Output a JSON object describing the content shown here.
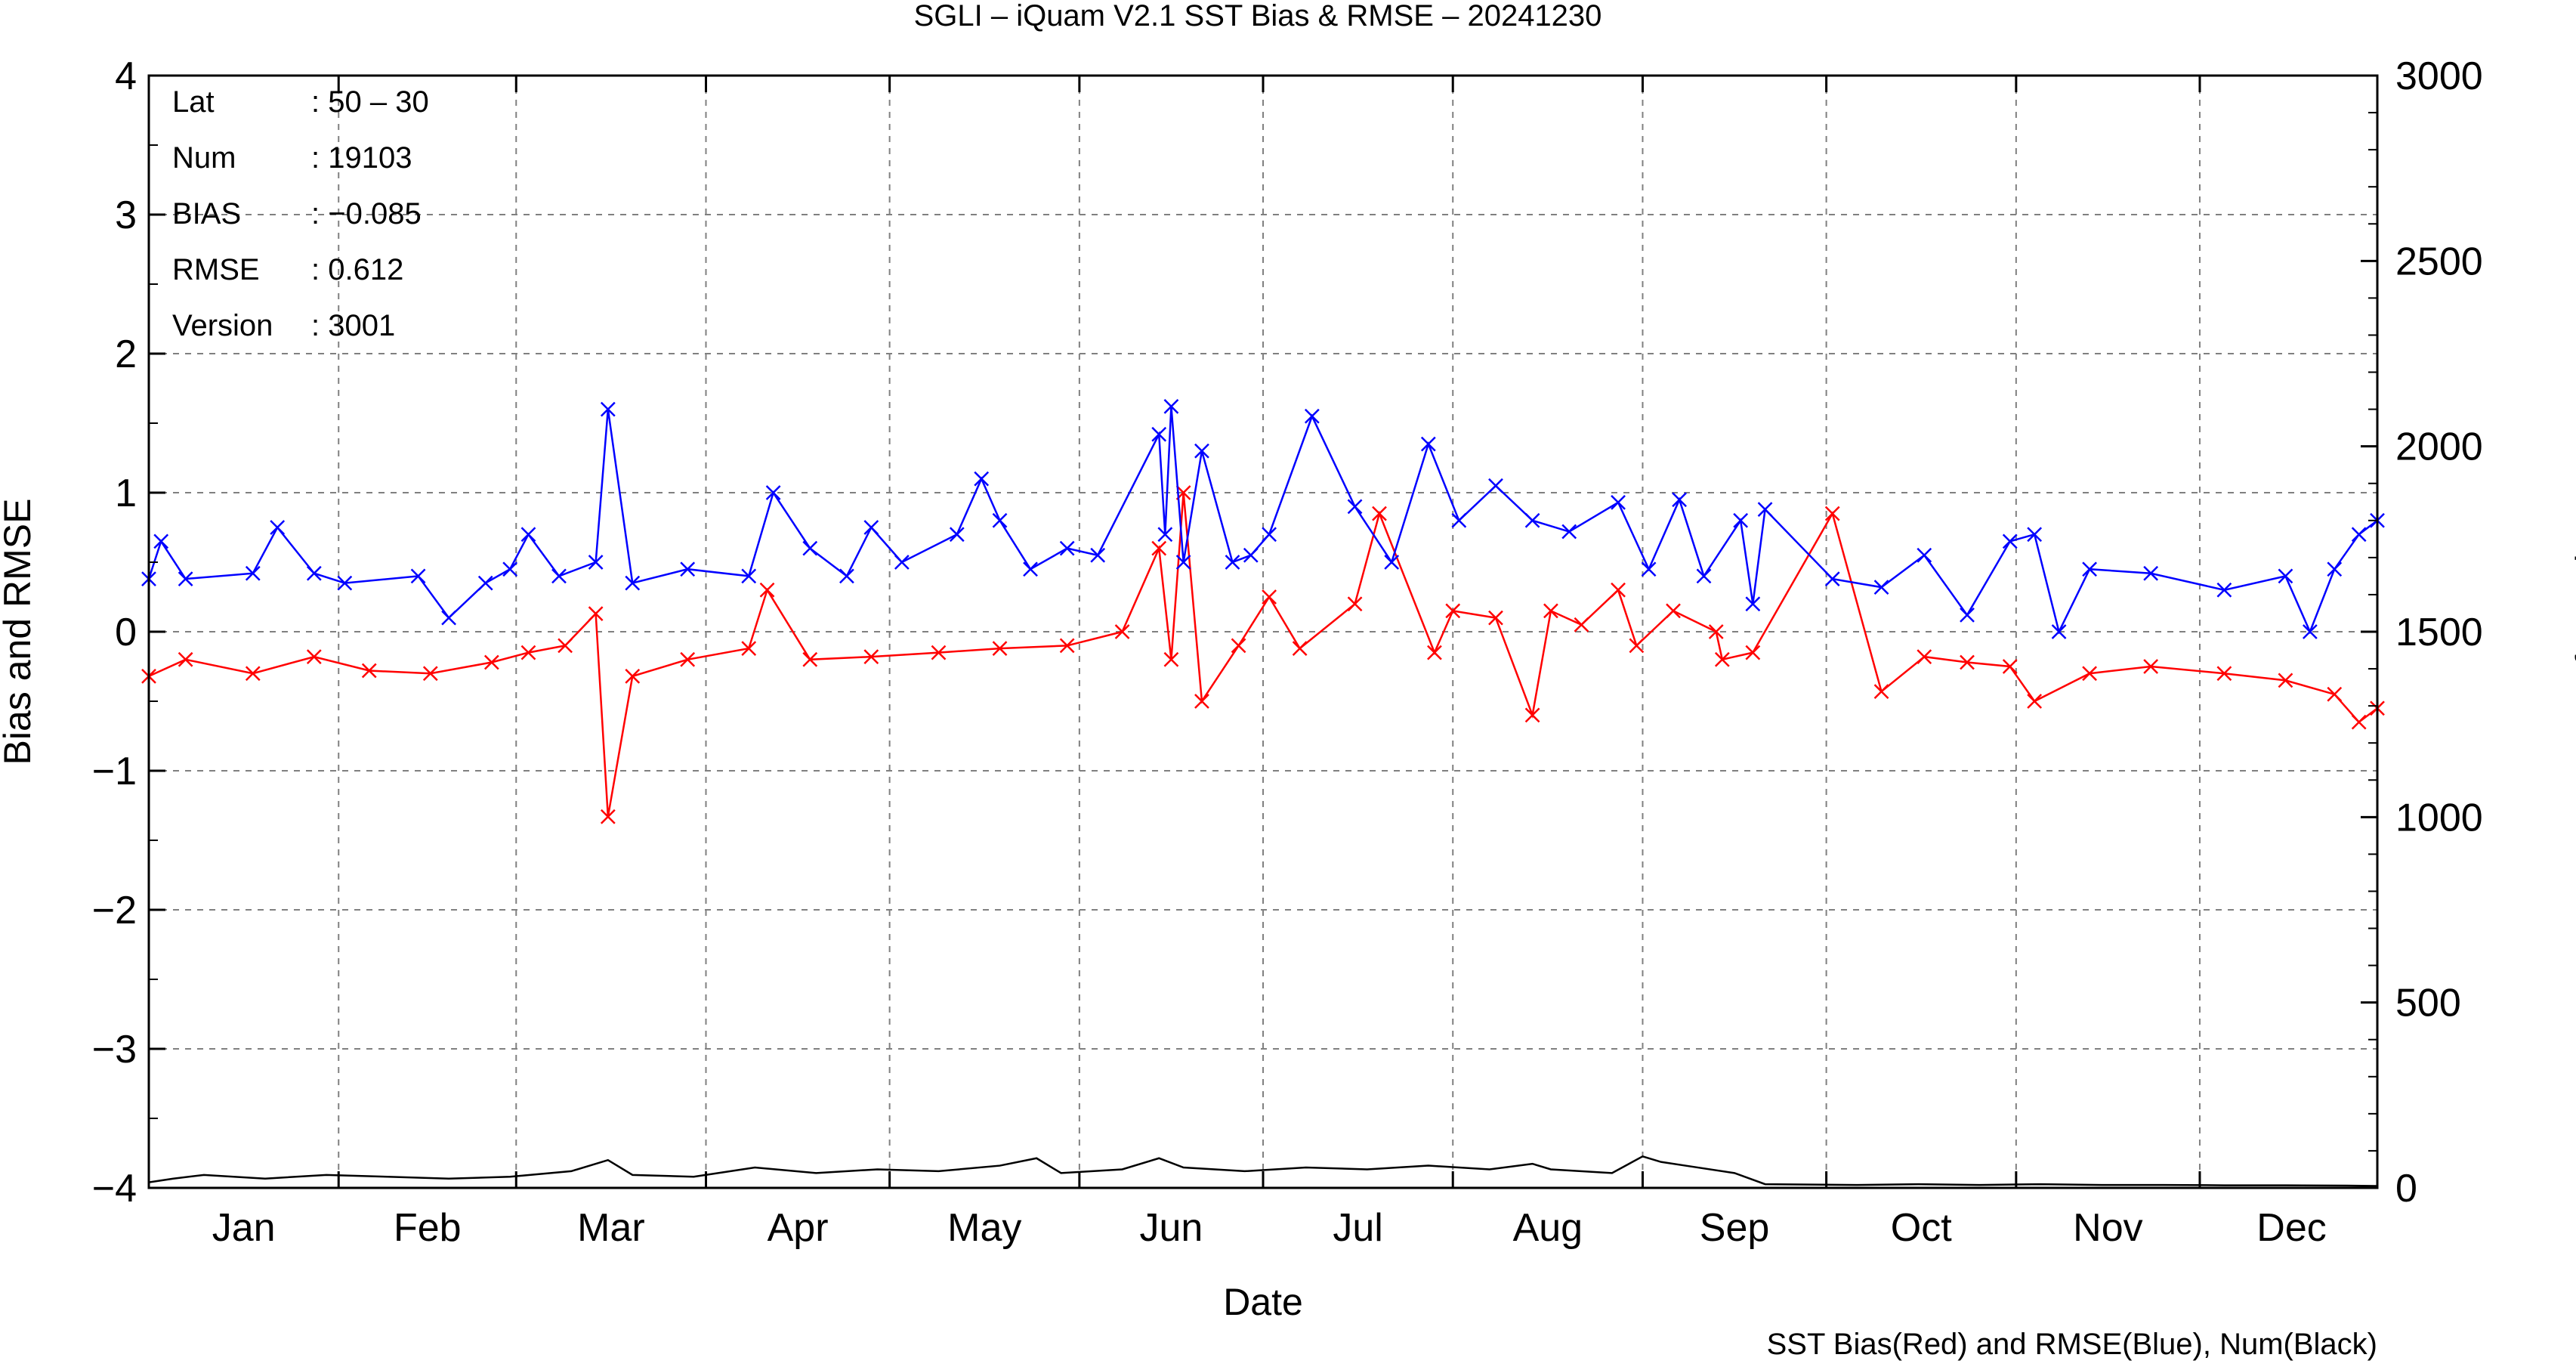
{
  "chart_data": {
    "type": "line",
    "title": "SGLI – iQuam V2.1 SST Bias & RMSE  – 20241230",
    "xlabel": "Date",
    "ylabel": "Bias and RMSE",
    "y2label": "Num of Match-up",
    "ylim": [
      -4,
      4
    ],
    "y2lim": [
      0,
      3000
    ],
    "y_ticks": [
      "4",
      "3",
      "2",
      "1",
      "0",
      "−1",
      "−2",
      "−3",
      "−4"
    ],
    "y2_ticks": [
      "3000",
      "2500",
      "2000",
      "1500",
      "1000",
      "500",
      "0"
    ],
    "x_unit": "day of year",
    "xlim": [
      1,
      365
    ],
    "month_labels": [
      "Jan",
      "Feb",
      "Mar",
      "Apr",
      "May",
      "Jun",
      "Jul",
      "Aug",
      "Sep",
      "Oct",
      "Nov",
      "Dec"
    ],
    "grid": true,
    "legend_text": "SST Bias(Red) and RMSE(Blue), Num(Black)",
    "stats": {
      "lat_label": "Lat",
      "lat_value": ": 50 – 30",
      "num_label": "Num",
      "num_value": ": 19103",
      "bias_label": "BIAS",
      "bias_value": ": −0.085",
      "rmse_label": "RMSE",
      "rmse_value": ": 0.612",
      "version_label": "Version",
      "version_value": ": 3001"
    },
    "colors": {
      "bias": "#ff0000",
      "rmse": "#0000ff",
      "num": "#000000",
      "grid": "#808080"
    },
    "series": [
      {
        "name": "SST Bias",
        "x": [
          1,
          7,
          18,
          28,
          37,
          47,
          57,
          63,
          69,
          74,
          76,
          80,
          89,
          99,
          102,
          109,
          119,
          130,
          140,
          151,
          160,
          166,
          168,
          170,
          173,
          179,
          184,
          189,
          198,
          202,
          211,
          214,
          221,
          227,
          230,
          235,
          241,
          244,
          250,
          257,
          258,
          263,
          276,
          284,
          291,
          298,
          305,
          309,
          318,
          328,
          340,
          350,
          358,
          362,
          365
        ],
        "y": [
          -0.32,
          -0.2,
          -0.3,
          -0.18,
          -0.28,
          -0.3,
          -0.22,
          -0.15,
          -0.1,
          0.13,
          -1.33,
          -0.32,
          -0.2,
          -0.12,
          0.3,
          -0.2,
          -0.18,
          -0.15,
          -0.12,
          -0.1,
          0.0,
          0.6,
          -0.2,
          1.0,
          -0.5,
          -0.1,
          0.25,
          -0.12,
          0.2,
          0.85,
          -0.15,
          0.15,
          0.1,
          -0.6,
          0.15,
          0.05,
          0.3,
          -0.1,
          0.15,
          0.0,
          -0.2,
          -0.15,
          0.85,
          -0.43,
          -0.18,
          -0.22,
          -0.25,
          -0.5,
          -0.3,
          -0.25,
          -0.3,
          -0.35,
          -0.45,
          -0.65,
          -0.55
        ]
      },
      {
        "name": "SST RMSE",
        "x": [
          1,
          3,
          7,
          18,
          22,
          28,
          33,
          45,
          50,
          56,
          60,
          63,
          68,
          74,
          76,
          80,
          89,
          99,
          103,
          109,
          115,
          119,
          124,
          133,
          137,
          140,
          145,
          151,
          156,
          166,
          167,
          168,
          170,
          173,
          178,
          181,
          184,
          191,
          198,
          204,
          210,
          215,
          221,
          227,
          233,
          241,
          246,
          251,
          255,
          261,
          263,
          265,
          276,
          284,
          291,
          298,
          305,
          309,
          313,
          318,
          328,
          340,
          350,
          354,
          358,
          362,
          365
        ],
        "y": [
          0.38,
          0.65,
          0.38,
          0.42,
          0.75,
          0.42,
          0.35,
          0.4,
          0.1,
          0.35,
          0.45,
          0.7,
          0.4,
          0.5,
          1.6,
          0.35,
          0.45,
          0.4,
          1.0,
          0.6,
          0.4,
          0.75,
          0.5,
          0.7,
          1.1,
          0.8,
          0.45,
          0.6,
          0.55,
          1.42,
          0.7,
          1.62,
          0.5,
          1.3,
          0.5,
          0.55,
          0.7,
          1.55,
          0.9,
          0.5,
          1.35,
          0.8,
          1.05,
          0.8,
          0.72,
          0.93,
          0.45,
          0.95,
          0.4,
          0.8,
          0.2,
          0.88,
          0.38,
          0.32,
          0.55,
          0.12,
          0.65,
          0.7,
          0.0,
          0.45,
          0.42,
          0.3,
          0.4,
          0.0,
          0.45,
          0.7,
          0.8
        ]
      },
      {
        "name": "Num",
        "y_axis": "right",
        "x": [
          1,
          5,
          10,
          20,
          30,
          40,
          50,
          60,
          70,
          76,
          80,
          90,
          100,
          110,
          120,
          130,
          140,
          146,
          150,
          160,
          166,
          170,
          180,
          190,
          200,
          210,
          220,
          227,
          230,
          240,
          245,
          248,
          252,
          260,
          265,
          280,
          290,
          300,
          310,
          320,
          330,
          340,
          350,
          360,
          365
        ],
        "y": [
          15,
          25,
          35,
          25,
          35,
          30,
          25,
          30,
          45,
          75,
          35,
          30,
          55,
          40,
          50,
          45,
          60,
          80,
          40,
          50,
          80,
          55,
          45,
          55,
          50,
          60,
          50,
          65,
          50,
          40,
          85,
          70,
          60,
          40,
          10,
          8,
          10,
          8,
          10,
          8,
          8,
          7,
          7,
          6,
          5
        ]
      }
    ]
  }
}
